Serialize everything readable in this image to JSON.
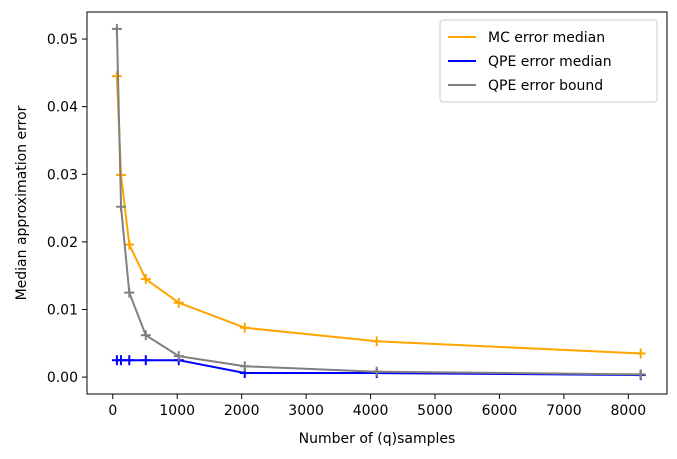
{
  "chart_data": {
    "type": "line",
    "xlabel": "Number of (q)samples",
    "ylabel": "Median approximation error",
    "xlim": [
      -400,
      8600
    ],
    "ylim": [
      -0.0025,
      0.054
    ],
    "xticks": [
      0,
      1000,
      2000,
      3000,
      4000,
      5000,
      6000,
      7000,
      8000
    ],
    "xtick_labels": [
      "0",
      "1000",
      "2000",
      "3000",
      "4000",
      "5000",
      "6000",
      "7000",
      "8000"
    ],
    "yticks": [
      0,
      0.01,
      0.02,
      0.03,
      0.04,
      0.05
    ],
    "ytick_labels": [
      "0.00",
      "0.01",
      "0.02",
      "0.03",
      "0.04",
      "0.05"
    ],
    "grid": false,
    "legend_position": "top-right",
    "marker": "+",
    "series": [
      {
        "name": "MC error median",
        "color": "#ffa500",
        "x": [
          64,
          128,
          256,
          512,
          1024,
          2048,
          4096,
          8192
        ],
        "y": [
          0.0445,
          0.0299,
          0.0196,
          0.0145,
          0.011,
          0.0073,
          0.0053,
          0.0035
        ]
      },
      {
        "name": "QPE error median",
        "color": "#0000ff",
        "x": [
          64,
          128,
          256,
          512,
          1024,
          2048,
          4096,
          8192
        ],
        "y": [
          0.0025,
          0.0025,
          0.0025,
          0.0025,
          0.0025,
          0.0006,
          0.0006,
          0.0003
        ]
      },
      {
        "name": "QPE error bound",
        "color": "#808080",
        "x": [
          64,
          128,
          256,
          512,
          1024,
          2048,
          4096,
          8192
        ],
        "y": [
          0.0515,
          0.0252,
          0.0125,
          0.0062,
          0.0031,
          0.0016,
          0.0008,
          0.0004
        ]
      }
    ]
  }
}
